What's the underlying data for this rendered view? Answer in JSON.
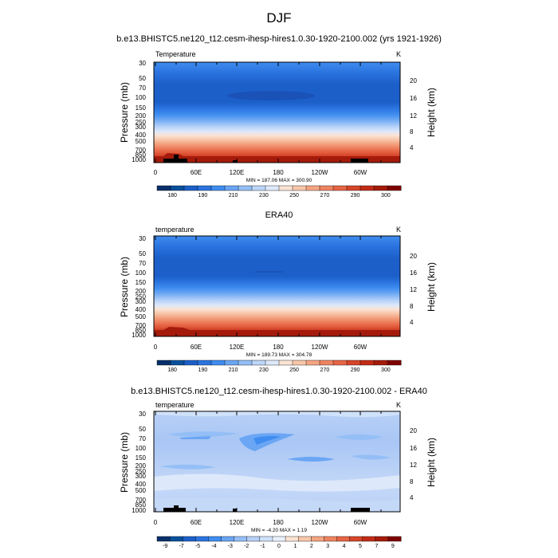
{
  "figure": {
    "title": "DJF"
  },
  "colors": {
    "temp_levels": [
      "#08306b",
      "#08519c",
      "#1c5fc9",
      "#2b74e0",
      "#3f8df0",
      "#6aa6f3",
      "#94bff6",
      "#bcd5f8",
      "#dde8fa",
      "#fbe3d4",
      "#f8c7ab",
      "#f4a582",
      "#ef8461",
      "#e66445",
      "#d6452a",
      "#c22c17",
      "#a51b0b",
      "#7f0000"
    ],
    "diff_levels": [
      "#08306b",
      "#08519c",
      "#1c5fc9",
      "#2b74e0",
      "#3f8df0",
      "#6aa6f3",
      "#94bff6",
      "#b8d0f6",
      "#d0e1fa",
      "#e8f0fc",
      "#fbe3d4",
      "#f8c7ab",
      "#f4a582",
      "#ef8461",
      "#e66445",
      "#d6452a",
      "#c22c17",
      "#a51b0b",
      "#7f0000"
    ],
    "topography": "#000000"
  },
  "chart_data": [
    {
      "type": "heatmap",
      "title": "b.e13.BHISTC5.ne120_t12.cesm-ihesp-hires1.0.30-1920-2100.002 (yrs 1921-1926)",
      "variable_label": "Temperature",
      "units": "K",
      "xlabel": "",
      "ylabel": "Pressure (mb)",
      "right_ylabel": "Height (km)",
      "x_ticks": [
        "0",
        "60E",
        "120E",
        "180",
        "120W",
        "60W"
      ],
      "y_ticks": [
        "30",
        "50",
        "70",
        "100",
        "150",
        "200",
        "250",
        "300",
        "400",
        "500",
        "700",
        "850",
        "1000"
      ],
      "right_ticks": [
        "20",
        "16",
        "12",
        "8",
        "4"
      ],
      "stats_text": "MIN = 187.06   MAX = 300.90",
      "colorbar_labels": [
        "180",
        "190",
        "210",
        "230",
        "250",
        "270",
        "290",
        "300"
      ],
      "ylim": [
        1000,
        30
      ],
      "xlim": [
        0,
        360
      ]
    },
    {
      "type": "heatmap",
      "title": "ERA40",
      "variable_label": "temperature",
      "units": "K",
      "xlabel": "",
      "ylabel": "Pressure (mb)",
      "right_ylabel": "Height (km)",
      "x_ticks": [
        "0",
        "60E",
        "120E",
        "180",
        "120W",
        "60W"
      ],
      "y_ticks": [
        "30",
        "50",
        "70",
        "100",
        "150",
        "200",
        "250",
        "300",
        "400",
        "500",
        "700",
        "850",
        "1000"
      ],
      "right_ticks": [
        "20",
        "16",
        "12",
        "8",
        "4"
      ],
      "stats_text": "MIN = 189.73   MAX = 304.78",
      "colorbar_labels": [
        "180",
        "190",
        "210",
        "230",
        "250",
        "270",
        "290",
        "300"
      ],
      "ylim": [
        1000,
        30
      ],
      "xlim": [
        0,
        360
      ]
    },
    {
      "type": "heatmap",
      "title": "b.e13.BHISTC5.ne120_t12.cesm-ihesp-hires1.0.30-1920-2100.002 - ERA40",
      "variable_label": "temperature",
      "units": "K",
      "xlabel": "",
      "ylabel": "Pressure (mb)",
      "right_ylabel": "Height (km)",
      "x_ticks": [
        "0",
        "60E",
        "120E",
        "180",
        "120W",
        "60W"
      ],
      "y_ticks": [
        "30",
        "50",
        "70",
        "100",
        "150",
        "200",
        "250",
        "300",
        "400",
        "500",
        "700",
        "850",
        "1000"
      ],
      "right_ticks": [
        "20",
        "16",
        "12",
        "8",
        "4"
      ],
      "stats_text": "MIN =  -4.20   MAX =   1.19",
      "colorbar_labels": [
        "-9",
        "-7",
        "-5",
        "-4",
        "-3",
        "-2",
        "-1",
        "0",
        "1",
        "2",
        "3",
        "4",
        "5",
        "7",
        "9"
      ],
      "ylim": [
        1000,
        30
      ],
      "xlim": [
        0,
        360
      ]
    }
  ]
}
